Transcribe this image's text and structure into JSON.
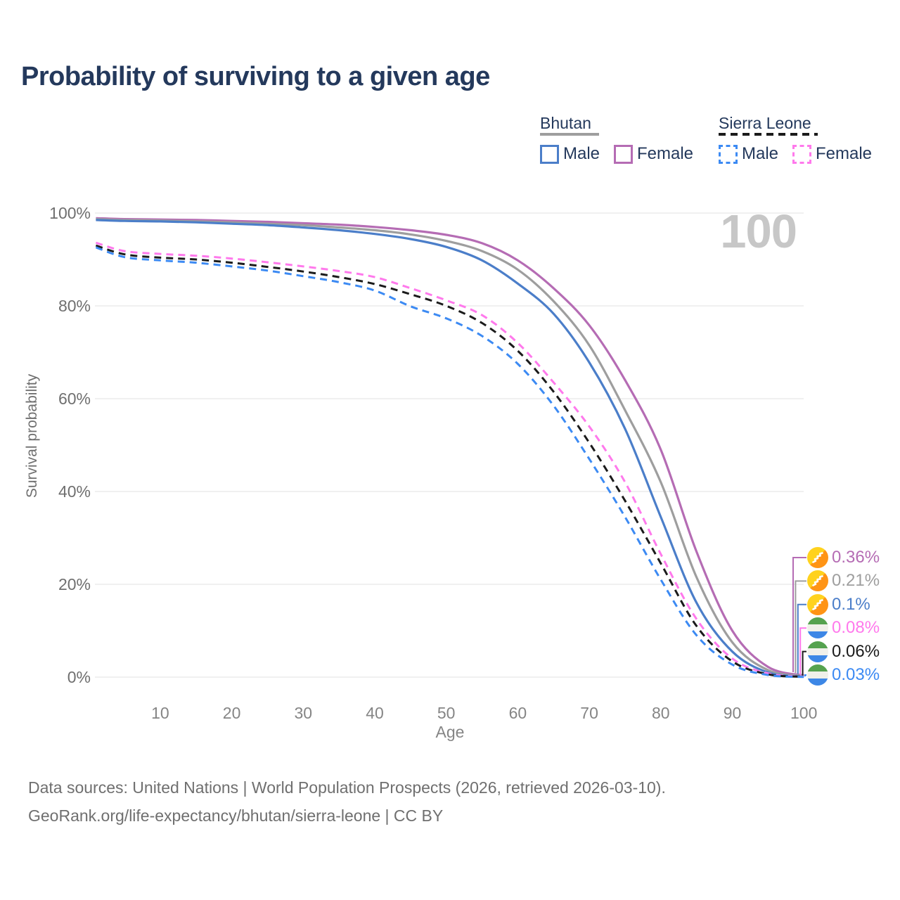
{
  "title": "Probability of surviving to a given age",
  "watermark_age": "100",
  "legend": {
    "groups": [
      {
        "country": "Bhutan",
        "line_style": "solid",
        "line_color": "#9e9e9e",
        "items": [
          {
            "label": "Male",
            "color": "#4b7ec9",
            "dashed": false
          },
          {
            "label": "Female",
            "color": "#b56cb4",
            "dashed": false
          }
        ]
      },
      {
        "country": "Sierra Leone",
        "line_style": "dashed",
        "line_color": "#1b1b1b",
        "items": [
          {
            "label": "Male",
            "color": "#3c8af3",
            "dashed": true
          },
          {
            "label": "Female",
            "color": "#ff79ec",
            "dashed": true
          }
        ]
      }
    ]
  },
  "y_axis": {
    "title": "Survival probability",
    "ticks": [
      {
        "label": "0%",
        "value": 0
      },
      {
        "label": "20%",
        "value": 20
      },
      {
        "label": "40%",
        "value": 40
      },
      {
        "label": "60%",
        "value": 60
      },
      {
        "label": "80%",
        "value": 80
      },
      {
        "label": "100%",
        "value": 100
      }
    ]
  },
  "x_axis": {
    "title": "Age",
    "ticks": [
      10,
      20,
      30,
      40,
      50,
      60,
      70,
      80,
      90,
      100
    ]
  },
  "chart_data": {
    "type": "line",
    "title": "Probability of surviving to a given age",
    "xlabel": "Age",
    "ylabel": "Survival probability",
    "xlim": [
      1,
      100
    ],
    "ylim": [
      0,
      100
    ],
    "grid": "horizontal",
    "legend_position": "top-right",
    "x": [
      1,
      5,
      10,
      15,
      20,
      25,
      30,
      35,
      40,
      45,
      50,
      55,
      60,
      65,
      70,
      75,
      80,
      85,
      90,
      95,
      100
    ],
    "series": [
      {
        "name": "Bhutan Female",
        "country": "Bhutan",
        "sex": "Female",
        "color": "#b56cb4",
        "dash": "solid",
        "end_label": "0.36%",
        "flag": "bhutan",
        "values": [
          98.9,
          98.7,
          98.6,
          98.5,
          98.3,
          98.1,
          97.8,
          97.5,
          97.0,
          96.3,
          95.3,
          93.5,
          89.8,
          83.8,
          75.8,
          64.0,
          49.0,
          27.0,
          10.0,
          2.2,
          0.36
        ]
      },
      {
        "name": "Bhutan Both sexes",
        "country": "Bhutan",
        "sex": "Both",
        "color": "#9e9e9e",
        "dash": "solid",
        "end_label": "0.21%",
        "flag": "bhutan",
        "values": [
          98.7,
          98.5,
          98.4,
          98.2,
          98.0,
          97.7,
          97.4,
          96.9,
          96.3,
          95.4,
          94.0,
          91.8,
          87.8,
          81.0,
          71.5,
          57.5,
          42.0,
          21.5,
          7.5,
          1.5,
          0.21
        ]
      },
      {
        "name": "Bhutan Male",
        "country": "Bhutan",
        "sex": "Male",
        "color": "#4b7ec9",
        "dash": "solid",
        "end_label": "0.1%",
        "flag": "bhutan",
        "values": [
          98.5,
          98.3,
          98.2,
          98.0,
          97.7,
          97.4,
          96.9,
          96.3,
          95.5,
          94.4,
          92.7,
          89.8,
          84.8,
          78.3,
          67.8,
          53.5,
          34.5,
          16.0,
          5.5,
          1.0,
          0.1
        ]
      },
      {
        "name": "Sierra Leone Female",
        "country": "Sierra Leone",
        "sex": "Female",
        "color": "#ff79ec",
        "dash": "dashed",
        "end_label": "0.08%",
        "flag": "sierra-leone",
        "values": [
          93.6,
          91.8,
          91.2,
          90.8,
          90.2,
          89.4,
          88.5,
          87.5,
          86.2,
          83.8,
          81.2,
          78.0,
          72.0,
          63.5,
          54.0,
          42.0,
          26.5,
          12.5,
          4.0,
          0.8,
          0.08
        ]
      },
      {
        "name": "Sierra Leone Both sexes",
        "country": "Sierra Leone",
        "sex": "Both",
        "color": "#1b1b1b",
        "dash": "dashed",
        "end_label": "0.06%",
        "flag": "sierra-leone",
        "values": [
          93.0,
          91.1,
          90.4,
          90.0,
          89.3,
          88.4,
          87.4,
          86.2,
          84.7,
          82.5,
          80.0,
          76.3,
          70.3,
          61.5,
          50.5,
          38.0,
          24.5,
          11.0,
          3.4,
          0.6,
          0.06
        ]
      },
      {
        "name": "Sierra Leone Male",
        "country": "Sierra Leone",
        "sex": "Male",
        "color": "#3c8af3",
        "dash": "dashed",
        "end_label": "0.03%",
        "flag": "sierra-leone",
        "values": [
          92.6,
          90.5,
          89.8,
          89.3,
          88.5,
          87.6,
          86.4,
          85.1,
          83.3,
          79.9,
          77.3,
          73.5,
          67.5,
          58.5,
          47.0,
          34.5,
          21.0,
          9.0,
          2.7,
          0.45,
          0.03
        ]
      }
    ]
  },
  "footer": {
    "line1": "Data sources: United Nations | World Population Prospects (2026, retrieved 2026-03-10).",
    "line2": "GeoRank.org/life-expectancy/bhutan/sierra-leone | CC BY"
  }
}
